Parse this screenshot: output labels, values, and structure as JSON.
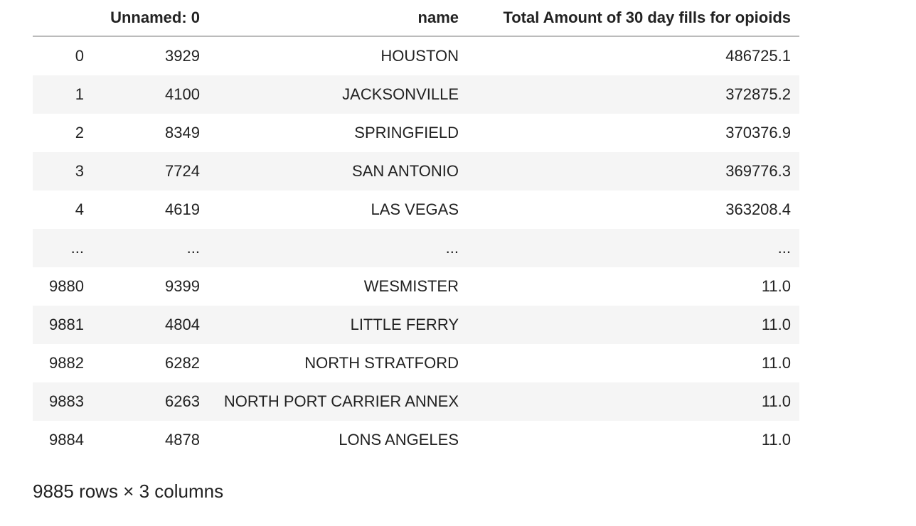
{
  "table": {
    "columns": [
      "Unnamed: 0",
      "name",
      "Total Amount of 30 day fills for opioids"
    ],
    "rows": [
      {
        "index": "0",
        "cells": [
          "3929",
          "HOUSTON",
          "486725.1"
        ]
      },
      {
        "index": "1",
        "cells": [
          "4100",
          "JACKSONVILLE",
          "372875.2"
        ]
      },
      {
        "index": "2",
        "cells": [
          "8349",
          "SPRINGFIELD",
          "370376.9"
        ]
      },
      {
        "index": "3",
        "cells": [
          "7724",
          "SAN ANTONIO",
          "369776.3"
        ]
      },
      {
        "index": "4",
        "cells": [
          "4619",
          "LAS VEGAS",
          "363208.4"
        ]
      },
      {
        "index": "...",
        "cells": [
          "...",
          "...",
          "..."
        ]
      },
      {
        "index": "9880",
        "cells": [
          "9399",
          "WESMISTER",
          "11.0"
        ]
      },
      {
        "index": "9881",
        "cells": [
          "4804",
          "LITTLE FERRY",
          "11.0"
        ]
      },
      {
        "index": "9882",
        "cells": [
          "6282",
          "NORTH STRATFORD",
          "11.0"
        ]
      },
      {
        "index": "9883",
        "cells": [
          "6263",
          "NORTH PORT CARRIER ANNEX",
          "11.0"
        ]
      },
      {
        "index": "9884",
        "cells": [
          "4878",
          "LONS ANGELES",
          "11.0"
        ]
      }
    ]
  },
  "caption": "9885 rows × 3 columns"
}
